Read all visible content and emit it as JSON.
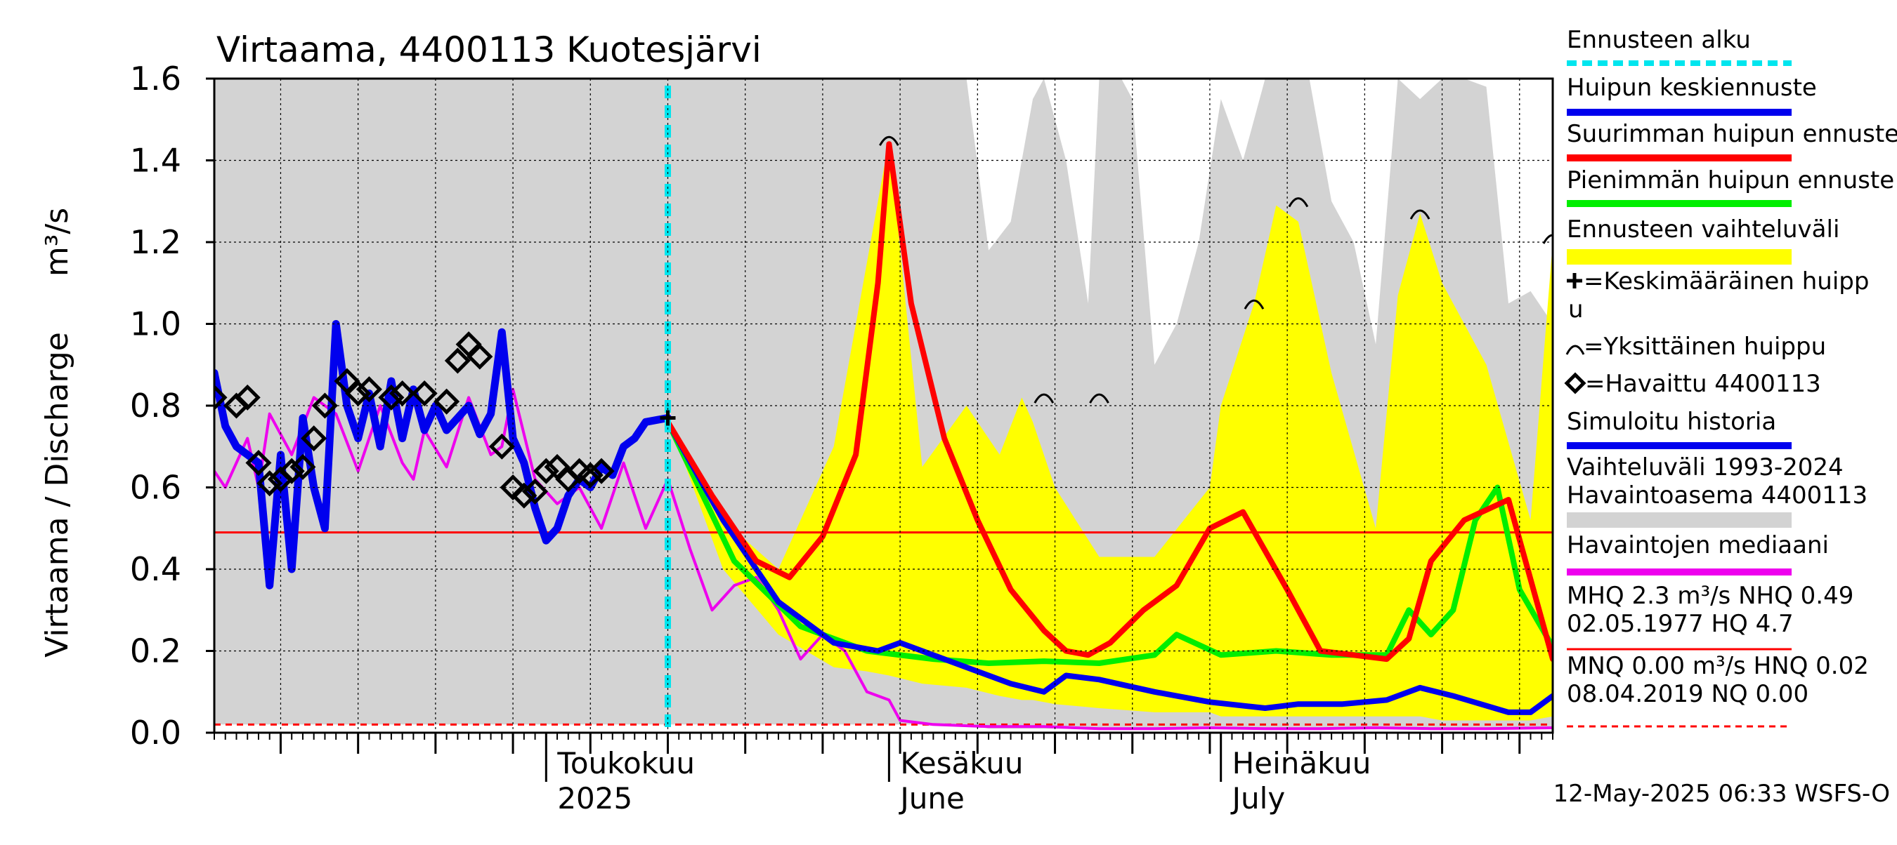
{
  "chart_data": {
    "type": "line",
    "title": "Virtaama, 4400113 Kuotesjärvi",
    "ylabel": "Virtaama / Discharge",
    "yunit": "m³/s",
    "ylim": [
      0.0,
      1.6
    ],
    "yticks": [
      "0.0",
      "0.2",
      "0.4",
      "0.6",
      "0.8",
      "1.0",
      "1.2",
      "1.4",
      "1.6"
    ],
    "x_range": [
      "2025-04-01",
      "2025-07-31"
    ],
    "month_labels": [
      {
        "date": "2025-05-01",
        "line1": "Toukokuu",
        "line2": "2025"
      },
      {
        "date": "2025-06-01",
        "line1": "Kesäkuu",
        "line2": "June"
      },
      {
        "date": "2025-07-01",
        "line1": "Heinäkuu",
        "line2": "July"
      }
    ],
    "grid": true,
    "forecast_start": "2025-05-12",
    "reference_lines": {
      "MHQ_line": 0.49,
      "MNQ_line": 0.02
    },
    "series": [
      {
        "name": "Vaihteluväli 1993-2024 Havaintoasema 4400113",
        "kind": "band",
        "color": "#d3d3d3",
        "x": [
          "2025-04-01",
          "2025-04-05",
          "2025-04-10",
          "2025-04-15",
          "2025-04-20",
          "2025-04-25",
          "2025-04-30",
          "2025-05-05",
          "2025-05-10",
          "2025-05-15",
          "2025-05-20",
          "2025-05-25",
          "2025-05-31",
          "2025-06-03",
          "2025-06-05",
          "2025-06-08",
          "2025-06-10",
          "2025-06-12",
          "2025-06-14",
          "2025-06-15",
          "2025-06-17",
          "2025-06-19",
          "2025-06-20",
          "2025-06-22",
          "2025-06-23",
          "2025-06-25",
          "2025-06-27",
          "2025-06-29",
          "2025-07-01",
          "2025-07-03",
          "2025-07-05",
          "2025-07-07",
          "2025-07-09",
          "2025-07-11",
          "2025-07-13",
          "2025-07-15",
          "2025-07-17",
          "2025-07-19",
          "2025-07-21",
          "2025-07-23",
          "2025-07-25",
          "2025-07-27",
          "2025-07-29",
          "2025-07-31"
        ],
        "upper": [
          1.6,
          1.6,
          1.6,
          1.6,
          1.6,
          1.6,
          1.6,
          1.6,
          1.6,
          1.6,
          1.6,
          1.6,
          1.6,
          1.6,
          1.6,
          1.6,
          1.18,
          1.25,
          1.55,
          1.6,
          1.4,
          1.05,
          1.6,
          1.6,
          1.55,
          0.9,
          1.0,
          1.2,
          1.55,
          1.4,
          1.6,
          1.6,
          1.6,
          1.3,
          1.2,
          0.95,
          1.6,
          1.55,
          1.6,
          1.6,
          1.58,
          1.05,
          1.08,
          1.0
        ],
        "lower": [
          0.02,
          0.02,
          0.02,
          0.02,
          0.02,
          0.02,
          0.02,
          0.02,
          0.02,
          0.02,
          0.02,
          0.02,
          0.02,
          0.02,
          0.02,
          0.02,
          0.01,
          0.01,
          0.01,
          0.01,
          0.01,
          0.01,
          0.01,
          0.01,
          0.01,
          0.01,
          0.01,
          0.01,
          0.01,
          0.01,
          0.01,
          0.01,
          0.01,
          0.01,
          0.01,
          0.01,
          0.01,
          0.01,
          0.01,
          0.01,
          0.01,
          0.01,
          0.01,
          0.01
        ]
      },
      {
        "name": "Ennusteen vaihteluväli",
        "kind": "band",
        "color": "#ffff00",
        "x": [
          "2025-05-12",
          "2025-05-17",
          "2025-05-22",
          "2025-05-27",
          "2025-05-30",
          "2025-06-01",
          "2025-06-04",
          "2025-06-08",
          "2025-06-11",
          "2025-06-13",
          "2025-06-14",
          "2025-06-16",
          "2025-06-20",
          "2025-06-25",
          "2025-06-30",
          "2025-07-01",
          "2025-07-04",
          "2025-07-06",
          "2025-07-08",
          "2025-07-11",
          "2025-07-15",
          "2025-07-17",
          "2025-07-19",
          "2025-07-21",
          "2025-07-25",
          "2025-07-29",
          "2025-07-31"
        ],
        "upper": [
          0.77,
          0.52,
          0.4,
          0.7,
          1.15,
          1.45,
          0.65,
          0.8,
          0.68,
          0.82,
          0.76,
          0.6,
          0.43,
          0.43,
          0.6,
          0.8,
          1.05,
          1.29,
          1.25,
          0.88,
          0.5,
          1.07,
          1.27,
          1.1,
          0.9,
          0.52,
          1.2
        ],
        "lower": [
          0.77,
          0.4,
          0.24,
          0.16,
          0.15,
          0.14,
          0.12,
          0.11,
          0.09,
          0.08,
          0.08,
          0.07,
          0.06,
          0.05,
          0.05,
          0.04,
          0.04,
          0.04,
          0.04,
          0.04,
          0.04,
          0.04,
          0.04,
          0.03,
          0.03,
          0.03,
          0.04
        ]
      },
      {
        "name": "Suurimman huipun ennuste",
        "kind": "line",
        "color": "#ff0000",
        "x": [
          "2025-05-12",
          "2025-05-16",
          "2025-05-20",
          "2025-05-23",
          "2025-05-26",
          "2025-05-29",
          "2025-05-31",
          "2025-06-01",
          "2025-06-03",
          "2025-06-06",
          "2025-06-09",
          "2025-06-12",
          "2025-06-15",
          "2025-06-17",
          "2025-06-19",
          "2025-06-21",
          "2025-06-24",
          "2025-06-27",
          "2025-06-30",
          "2025-07-03",
          "2025-07-07",
          "2025-07-10",
          "2025-07-13",
          "2025-07-16",
          "2025-07-18",
          "2025-07-20",
          "2025-07-23",
          "2025-07-27",
          "2025-07-31"
        ],
        "y": [
          0.76,
          0.58,
          0.42,
          0.38,
          0.48,
          0.68,
          1.1,
          1.44,
          1.05,
          0.72,
          0.52,
          0.35,
          0.25,
          0.2,
          0.19,
          0.22,
          0.3,
          0.36,
          0.5,
          0.54,
          0.35,
          0.2,
          0.19,
          0.18,
          0.23,
          0.42,
          0.52,
          0.57,
          0.18
        ]
      },
      {
        "name": "Pienimmän huipun ennuste",
        "kind": "line",
        "color": "#00ee00",
        "x": [
          "2025-05-12",
          "2025-05-18",
          "2025-05-24",
          "2025-05-30",
          "2025-06-05",
          "2025-06-10",
          "2025-06-15",
          "2025-06-20",
          "2025-06-25",
          "2025-06-27",
          "2025-07-01",
          "2025-07-06",
          "2025-07-11",
          "2025-07-16",
          "2025-07-18",
          "2025-07-20",
          "2025-07-22",
          "2025-07-24",
          "2025-07-26",
          "2025-07-28",
          "2025-07-31"
        ],
        "y": [
          0.76,
          0.42,
          0.26,
          0.2,
          0.18,
          0.17,
          0.175,
          0.17,
          0.19,
          0.24,
          0.19,
          0.2,
          0.19,
          0.19,
          0.3,
          0.24,
          0.3,
          0.52,
          0.6,
          0.35,
          0.21
        ]
      },
      {
        "name": "Huipun keskiennuste",
        "kind": "line",
        "color": "#0000ee",
        "x": [
          "2025-05-12",
          "2025-05-17",
          "2025-05-22",
          "2025-05-27",
          "2025-05-31",
          "2025-06-02",
          "2025-06-07",
          "2025-06-12",
          "2025-06-15",
          "2025-06-17",
          "2025-06-20",
          "2025-06-25",
          "2025-06-30",
          "2025-07-05",
          "2025-07-08",
          "2025-07-12",
          "2025-07-16",
          "2025-07-19",
          "2025-07-22",
          "2025-07-27",
          "2025-07-29",
          "2025-07-31"
        ],
        "y": [
          0.76,
          0.52,
          0.32,
          0.22,
          0.2,
          0.22,
          0.17,
          0.12,
          0.1,
          0.14,
          0.13,
          0.1,
          0.075,
          0.06,
          0.07,
          0.07,
          0.08,
          0.11,
          0.09,
          0.05,
          0.05,
          0.09
        ]
      },
      {
        "name": "Simuloitu historia",
        "kind": "line",
        "color": "#0000ee",
        "x": [
          "2025-04-01",
          "2025-04-02",
          "2025-04-03",
          "2025-04-05",
          "2025-04-06",
          "2025-04-07",
          "2025-04-08",
          "2025-04-09",
          "2025-04-10",
          "2025-04-11",
          "2025-04-12",
          "2025-04-13",
          "2025-04-14",
          "2025-04-15",
          "2025-04-16",
          "2025-04-17",
          "2025-04-18",
          "2025-04-19",
          "2025-04-20",
          "2025-04-21",
          "2025-04-22",
          "2025-04-23",
          "2025-04-24",
          "2025-04-25",
          "2025-04-26",
          "2025-04-27",
          "2025-04-28",
          "2025-04-29",
          "2025-04-30",
          "2025-05-01",
          "2025-05-02",
          "2025-05-03",
          "2025-05-04",
          "2025-05-05",
          "2025-05-06",
          "2025-05-07",
          "2025-05-08",
          "2025-05-09",
          "2025-05-10",
          "2025-05-12"
        ],
        "y": [
          0.88,
          0.75,
          0.7,
          0.66,
          0.36,
          0.68,
          0.4,
          0.77,
          0.6,
          0.5,
          1.0,
          0.8,
          0.72,
          0.83,
          0.7,
          0.86,
          0.72,
          0.84,
          0.74,
          0.8,
          0.74,
          0.77,
          0.8,
          0.73,
          0.78,
          0.98,
          0.72,
          0.66,
          0.55,
          0.47,
          0.5,
          0.58,
          0.62,
          0.6,
          0.65,
          0.63,
          0.7,
          0.72,
          0.76,
          0.77
        ]
      },
      {
        "name": "Havaintojen mediaani",
        "kind": "line",
        "color": "#ee00ee",
        "x": [
          "2025-04-01",
          "2025-04-02",
          "2025-04-04",
          "2025-04-05",
          "2025-04-06",
          "2025-04-08",
          "2025-04-10",
          "2025-04-12",
          "2025-04-14",
          "2025-04-16",
          "2025-04-18",
          "2025-04-19",
          "2025-04-20",
          "2025-04-22",
          "2025-04-24",
          "2025-04-26",
          "2025-04-27",
          "2025-04-28",
          "2025-04-30",
          "2025-05-02",
          "2025-05-04",
          "2025-05-06",
          "2025-05-08",
          "2025-05-10",
          "2025-05-12",
          "2025-05-14",
          "2025-05-16",
          "2025-05-18",
          "2025-05-20",
          "2025-05-22",
          "2025-05-24",
          "2025-05-26",
          "2025-05-28",
          "2025-05-30",
          "2025-06-01",
          "2025-06-02",
          "2025-06-05",
          "2025-06-10",
          "2025-06-15",
          "2025-06-20",
          "2025-06-25",
          "2025-06-30",
          "2025-07-05",
          "2025-07-10",
          "2025-07-15",
          "2025-07-20",
          "2025-07-25",
          "2025-07-31"
        ],
        "y": [
          0.64,
          0.6,
          0.72,
          0.6,
          0.78,
          0.68,
          0.82,
          0.78,
          0.64,
          0.8,
          0.66,
          0.62,
          0.74,
          0.65,
          0.82,
          0.68,
          0.7,
          0.84,
          0.62,
          0.56,
          0.6,
          0.5,
          0.66,
          0.5,
          0.62,
          0.45,
          0.3,
          0.36,
          0.38,
          0.3,
          0.18,
          0.24,
          0.2,
          0.1,
          0.08,
          0.03,
          0.02,
          0.015,
          0.015,
          0.01,
          0.01,
          0.012,
          0.01,
          0.01,
          0.012,
          0.01,
          0.01,
          0.012
        ]
      },
      {
        "name": "Havaittu 4400113",
        "kind": "markers",
        "color": "#000000",
        "x": [
          "2025-04-01",
          "2025-04-03",
          "2025-04-04",
          "2025-04-05",
          "2025-04-06",
          "2025-04-07",
          "2025-04-08",
          "2025-04-09",
          "2025-04-10",
          "2025-04-11",
          "2025-04-13",
          "2025-04-14",
          "2025-04-15",
          "2025-04-17",
          "2025-04-18",
          "2025-04-20",
          "2025-04-22",
          "2025-04-23",
          "2025-04-24",
          "2025-04-25",
          "2025-04-27",
          "2025-04-28",
          "2025-04-29",
          "2025-04-30",
          "2025-05-01",
          "2025-05-02",
          "2025-05-03",
          "2025-05-04",
          "2025-05-05",
          "2025-05-06"
        ],
        "y": [
          0.82,
          0.8,
          0.82,
          0.66,
          0.61,
          0.62,
          0.64,
          0.65,
          0.72,
          0.8,
          0.86,
          0.83,
          0.84,
          0.82,
          0.83,
          0.83,
          0.81,
          0.91,
          0.95,
          0.92,
          0.7,
          0.6,
          0.58,
          0.59,
          0.64,
          0.65,
          0.62,
          0.64,
          0.63,
          0.64
        ]
      }
    ],
    "peak_markers": [
      {
        "date": "2025-06-01",
        "value": 1.44
      },
      {
        "date": "2025-06-15",
        "value": 0.81
      },
      {
        "date": "2025-06-20",
        "value": 0.81
      },
      {
        "date": "2025-07-04",
        "value": 1.04
      },
      {
        "date": "2025-07-08",
        "value": 1.29
      },
      {
        "date": "2025-07-19",
        "value": 1.26
      },
      {
        "date": "2025-07-31",
        "value": 1.2
      }
    ],
    "mean_peak_marker": {
      "date": "2025-05-12",
      "value": 0.77
    }
  },
  "legend": {
    "items": [
      {
        "label": "Ennusteen alku",
        "style": "dash",
        "color": "#00e5ee"
      },
      {
        "label": "Huipun keskiennuste",
        "style": "line",
        "color": "#0000ee"
      },
      {
        "label": "Suurimman huipun ennuste",
        "style": "line",
        "color": "#ff0000"
      },
      {
        "label": "Pienimmän huipun ennuste",
        "style": "line",
        "color": "#00ee00"
      },
      {
        "label": "Ennusteen vaihteluväli",
        "style": "band",
        "color": "#ffff00"
      },
      {
        "label": "=Keskimääräinen huipp",
        "label2": "u",
        "style": "plus",
        "color": "#000000"
      },
      {
        "label": "=Yksittäinen huippu",
        "style": "arc",
        "color": "#000000"
      },
      {
        "label": "=Havaittu 4400113",
        "style": "diamond",
        "color": "#000000"
      },
      {
        "label": "Simuloitu historia",
        "style": "line",
        "color": "#0000ee"
      },
      {
        "label": "Vaihteluväli 1993-2024",
        "label2": " Havaintoasema 4400113",
        "style": "band",
        "color": "#d3d3d3"
      },
      {
        "label": "Havaintojen mediaani",
        "style": "line",
        "color": "#ee00ee"
      },
      {
        "label": "MHQ  2.3 m³/s NHQ 0.49",
        "label2": "02.05.1977 HQ  4.7",
        "style": "line-thin",
        "color": "#ff0000"
      },
      {
        "label": "MNQ 0.00 m³/s HNQ 0.02",
        "label2": "08.04.2019 NQ 0.00",
        "style": "dash-thin",
        "color": "#ff0000"
      }
    ]
  },
  "footer": "12-May-2025 06:33 WSFS-O",
  "colors": {
    "grid": "#000000",
    "plot_bg": "#ffffff"
  }
}
